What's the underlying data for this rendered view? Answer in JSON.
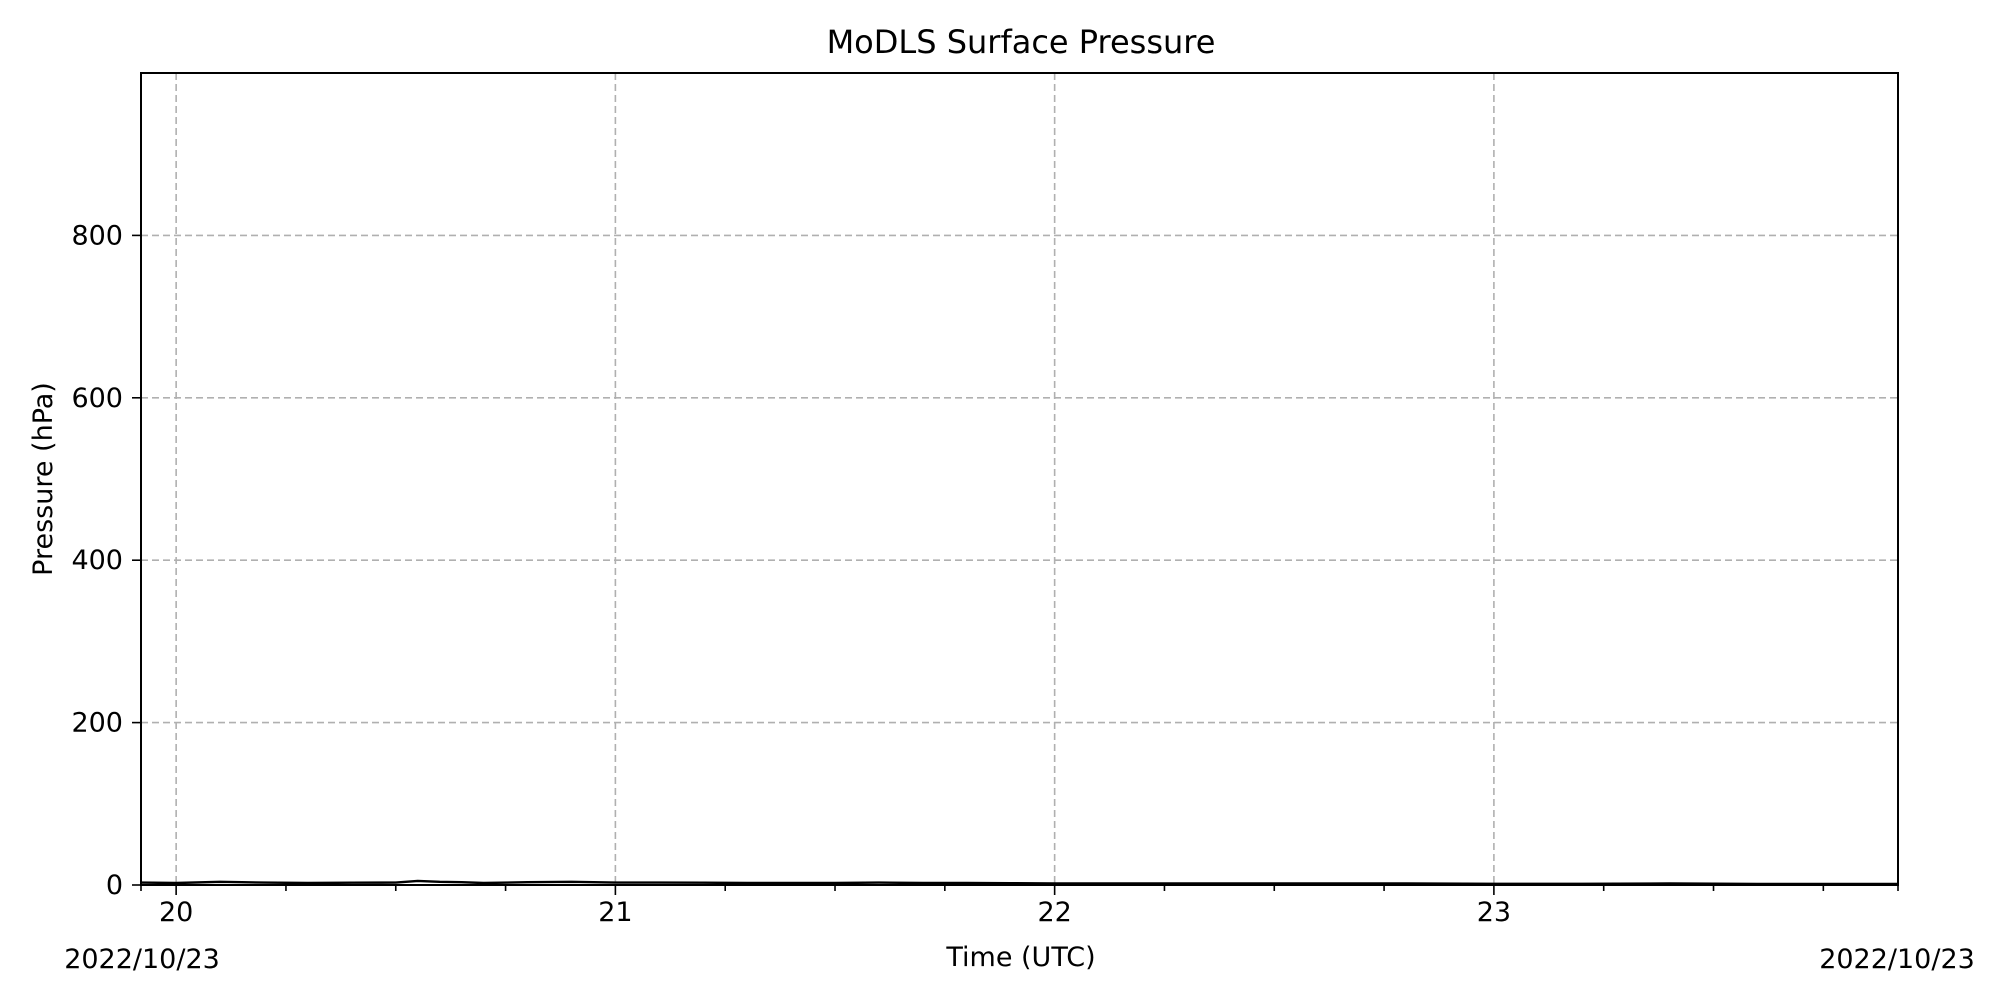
{
  "chart_data": {
    "type": "line",
    "title": "MoDLS Surface Pressure",
    "xlabel": "Time (UTC)",
    "ylabel": "Pressure (hPa)",
    "xlim_day": [
      19.92,
      23.92
    ],
    "ylim": [
      0,
      1000
    ],
    "x_ticks": [
      {
        "value": 20,
        "label": "20"
      },
      {
        "value": 21,
        "label": "21"
      },
      {
        "value": 22,
        "label": "22"
      },
      {
        "value": 23,
        "label": "23"
      }
    ],
    "x_minor_ticks": [
      19.92,
      20.25,
      20.5,
      20.75,
      21.25,
      21.5,
      21.75,
      22.25,
      22.5,
      22.75,
      23.25,
      23.5,
      23.75,
      23.92
    ],
    "y_ticks": [
      0,
      200,
      400,
      600,
      800
    ],
    "date_labels": {
      "left": "2022/10/23",
      "right": "2022/10/23"
    },
    "grid": true,
    "color": "#000000",
    "series": [
      {
        "x": [
          19.92,
          20.0,
          20.1,
          20.15,
          20.2,
          20.3,
          20.4,
          20.5,
          20.55,
          20.6,
          20.65,
          20.7,
          20.8,
          20.9,
          21.0,
          21.1,
          21.2,
          21.3,
          21.4,
          21.5,
          21.6,
          21.7,
          21.8,
          21.9,
          22.0,
          22.2,
          22.4,
          22.6,
          22.8,
          23.0,
          23.2,
          23.4,
          23.6,
          23.8,
          23.92
        ],
        "y": [
          3,
          2.5,
          4,
          3.5,
          3,
          2.5,
          2.8,
          3,
          5,
          4,
          3.5,
          2.5,
          3.5,
          4,
          3,
          3,
          2.8,
          2.5,
          2.5,
          2.5,
          3,
          2.5,
          2.5,
          2.2,
          2,
          2,
          2,
          1.8,
          1.8,
          1.5,
          1.5,
          1.8,
          1.3,
          1.2,
          1.2
        ]
      }
    ]
  }
}
